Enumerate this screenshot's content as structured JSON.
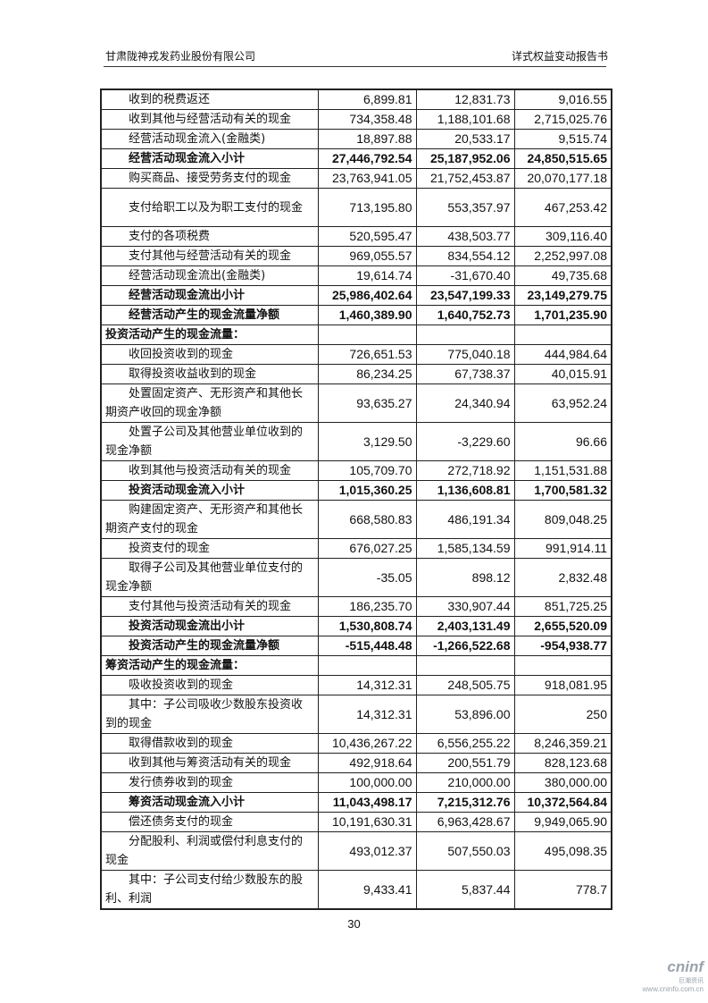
{
  "header": {
    "company": "甘肃陇神戎发药业股份有限公司",
    "report": "详式权益变动报告书"
  },
  "rows": [
    {
      "label": "收到的税费返还",
      "values": [
        "6,899.81",
        "12,831.73",
        "9,016.55"
      ]
    },
    {
      "label": "收到其他与经营活动有关的现金",
      "values": [
        "734,358.48",
        "1,188,101.68",
        "2,715,025.76"
      ]
    },
    {
      "label": "经营活动现金流入(金融类)",
      "values": [
        "18,897.88",
        "20,533.17",
        "9,515.74"
      ]
    },
    {
      "label": "经营活动现金流入小计",
      "values": [
        "27,446,792.54",
        "25,187,952.06",
        "24,850,515.65"
      ],
      "bold": true
    },
    {
      "label": "购买商品、接受劳务支付的现金",
      "values": [
        "23,763,941.05",
        "21,752,453.87",
        "20,070,177.18"
      ]
    },
    {
      "label": "支付给职工以及为职工支付的现金",
      "values": [
        "713,195.80",
        "553,357.97",
        "467,253.42"
      ],
      "two": true
    },
    {
      "label": "支付的各项税费",
      "values": [
        "520,595.47",
        "438,503.77",
        "309,116.40"
      ]
    },
    {
      "label": "支付其他与经营活动有关的现金",
      "values": [
        "969,055.57",
        "834,554.12",
        "2,252,997.08"
      ]
    },
    {
      "label": "经营活动现金流出(金融类)",
      "values": [
        "19,614.74",
        "-31,670.40",
        "49,735.68"
      ]
    },
    {
      "label": "经营活动现金流出小计",
      "values": [
        "25,986,402.64",
        "23,547,199.33",
        "23,149,279.75"
      ],
      "bold": true
    },
    {
      "label": "经营活动产生的现金流量净额",
      "values": [
        "1,460,389.90",
        "1,640,752.73",
        "1,701,235.90"
      ],
      "bold": true
    },
    {
      "label": "投资活动产生的现金流量：",
      "values": [
        "",
        "",
        ""
      ],
      "section": true
    },
    {
      "label": "收回投资收到的现金",
      "values": [
        "726,651.53",
        "775,040.18",
        "444,984.64"
      ]
    },
    {
      "label": "取得投资收益收到的现金",
      "values": [
        "86,234.25",
        "67,738.37",
        "40,015.91"
      ]
    },
    {
      "label": "处置固定资产、无形资产和其他长期资产收回的现金净额",
      "values": [
        "93,635.27",
        "24,340.94",
        "63,952.24"
      ],
      "two": true
    },
    {
      "label": "处置子公司及其他营业单位收到的现金净额",
      "values": [
        "3,129.50",
        "-3,229.60",
        "96.66"
      ],
      "two": true
    },
    {
      "label": "收到其他与投资活动有关的现金",
      "values": [
        "105,709.70",
        "272,718.92",
        "1,151,531.88"
      ]
    },
    {
      "label": "投资活动现金流入小计",
      "values": [
        "1,015,360.25",
        "1,136,608.81",
        "1,700,581.32"
      ],
      "bold": true
    },
    {
      "label": "购建固定资产、无形资产和其他长期资产支付的现金",
      "values": [
        "668,580.83",
        "486,191.34",
        "809,048.25"
      ],
      "two": true
    },
    {
      "label": "投资支付的现金",
      "values": [
        "676,027.25",
        "1,585,134.59",
        "991,914.11"
      ]
    },
    {
      "label": "取得子公司及其他营业单位支付的现金净额",
      "values": [
        "-35.05",
        "898.12",
        "2,832.48"
      ],
      "two": true
    },
    {
      "label": "支付其他与投资活动有关的现金",
      "values": [
        "186,235.70",
        "330,907.44",
        "851,725.25"
      ]
    },
    {
      "label": "投资活动现金流出小计",
      "values": [
        "1,530,808.74",
        "2,403,131.49",
        "2,655,520.09"
      ],
      "bold": true
    },
    {
      "label": "投资活动产生的现金流量净额",
      "values": [
        "-515,448.48",
        "-1,266,522.68",
        "-954,938.77"
      ],
      "bold": true
    },
    {
      "label": "筹资活动产生的现金流量：",
      "values": [
        "",
        "",
        ""
      ],
      "section": true
    },
    {
      "label": "吸收投资收到的现金",
      "values": [
        "14,312.31",
        "248,505.75",
        "918,081.95"
      ]
    },
    {
      "label": "其中：子公司吸收少数股东投资收到的现金",
      "values": [
        "14,312.31",
        "53,896.00",
        "250"
      ],
      "two": true
    },
    {
      "label": "取得借款收到的现金",
      "values": [
        "10,436,267.22",
        "6,556,255.22",
        "8,246,359.21"
      ]
    },
    {
      "label": "收到其他与筹资活动有关的现金",
      "values": [
        "492,918.64",
        "200,551.79",
        "828,123.68"
      ]
    },
    {
      "label": "发行债券收到的现金",
      "values": [
        "100,000.00",
        "210,000.00",
        "380,000.00"
      ]
    },
    {
      "label": "筹资活动现金流入小计",
      "values": [
        "11,043,498.17",
        "7,215,312.76",
        "10,372,564.84"
      ],
      "bold": true
    },
    {
      "label": "偿还债务支付的现金",
      "values": [
        "10,191,630.31",
        "6,963,428.67",
        "9,949,065.90"
      ]
    },
    {
      "label": "分配股利、利润或偿付利息支付的现金",
      "values": [
        "493,012.37",
        "507,550.03",
        "495,098.35"
      ],
      "two": true
    },
    {
      "label": "其中：子公司支付给少数股东的股利、利润",
      "values": [
        "9,433.41",
        "5,837.44",
        "778.7"
      ],
      "two": true
    }
  ],
  "page_number": "30",
  "watermark": {
    "brand": "cninf",
    "sub": "巨潮资讯",
    "url": "www.cninfo.com.cn"
  }
}
